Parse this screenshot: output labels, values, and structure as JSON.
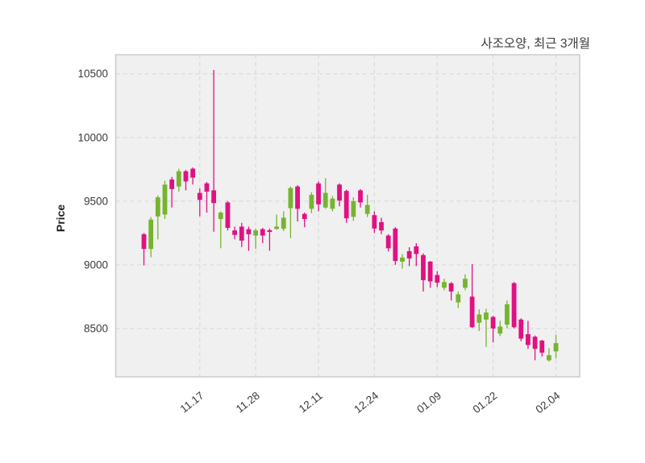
{
  "colors": {
    "up": "#76B42F",
    "down": "#E01182",
    "plot_bg": "#f0f0f0",
    "grid": "#d8d8d8",
    "border": "#cccccc",
    "text": "#3a3a3a"
  },
  "chart_data": {
    "type": "candlestick",
    "title": "사조오양, 최근 3개월",
    "ylabel": "Price",
    "xlabel": "",
    "grid": "dashed",
    "legend": "none",
    "ylim": [
      8120,
      10650
    ],
    "y_ticks": [
      8500,
      9000,
      9500,
      10000,
      10500
    ],
    "x_tick_labels": [
      "11.17",
      "11.28",
      "12.11",
      "12.24",
      "01.09",
      "01.22",
      "02.04"
    ],
    "x_tick_indices": [
      8,
      16,
      25,
      33,
      42,
      50,
      59
    ],
    "candle_format": [
      "open",
      "high",
      "low",
      "close"
    ],
    "candles": [
      [
        9240,
        9250,
        8995,
        9125
      ],
      [
        9125,
        9375,
        9060,
        9355
      ],
      [
        9380,
        9545,
        9200,
        9530
      ],
      [
        9395,
        9660,
        9360,
        9630
      ],
      [
        9670,
        9690,
        9450,
        9595
      ],
      [
        9615,
        9755,
        9575,
        9735
      ],
      [
        9735,
        9745,
        9585,
        9655
      ],
      [
        9755,
        9765,
        9630,
        9685
      ],
      [
        9565,
        9600,
        9380,
        9510
      ],
      [
        9640,
        9650,
        9410,
        9575
      ],
      [
        9585,
        10530,
        9260,
        9485
      ],
      [
        9360,
        9420,
        9130,
        9410
      ],
      [
        9490,
        9500,
        9270,
        9290
      ],
      [
        9270,
        9300,
        9200,
        9235
      ],
      [
        9300,
        9330,
        9140,
        9190
      ],
      [
        9280,
        9300,
        9110,
        9240
      ],
      [
        9230,
        9285,
        9125,
        9270
      ],
      [
        9280,
        9290,
        9170,
        9230
      ],
      [
        9272,
        9285,
        9110,
        9258
      ],
      [
        9282,
        9395,
        9275,
        9300
      ],
      [
        9283,
        9420,
        9265,
        9370
      ],
      [
        9445,
        9615,
        9210,
        9603
      ],
      [
        9615,
        9625,
        9340,
        9440
      ],
      [
        9400,
        9410,
        9295,
        9360
      ],
      [
        9440,
        9570,
        9405,
        9550
      ],
      [
        9640,
        9655,
        9420,
        9475
      ],
      [
        9450,
        9680,
        9440,
        9565
      ],
      [
        9440,
        9540,
        9420,
        9520
      ],
      [
        9630,
        9640,
        9460,
        9505
      ],
      [
        9580,
        9590,
        9330,
        9365
      ],
      [
        9377,
        9530,
        9345,
        9500
      ],
      [
        9585,
        9595,
        9450,
        9490
      ],
      [
        9400,
        9550,
        9375,
        9470
      ],
      [
        9390,
        9420,
        9250,
        9285
      ],
      [
        9335,
        9370,
        9240,
        9270
      ],
      [
        9230,
        9240,
        9105,
        9130
      ],
      [
        9285,
        9295,
        9000,
        9030
      ],
      [
        9025,
        9085,
        8970,
        9057
      ],
      [
        9107,
        9138,
        8990,
        9050
      ],
      [
        9145,
        9170,
        8990,
        9085
      ],
      [
        9076,
        9090,
        8790,
        8880
      ],
      [
        9025,
        9030,
        8820,
        8870
      ],
      [
        8920,
        8950,
        8825,
        8860
      ],
      [
        8820,
        8890,
        8800,
        8865
      ],
      [
        8855,
        8865,
        8720,
        8790
      ],
      [
        8705,
        8790,
        8660,
        8768
      ],
      [
        8820,
        8925,
        8800,
        8890
      ],
      [
        8750,
        9005,
        8505,
        8510
      ],
      [
        8545,
        8650,
        8480,
        8610
      ],
      [
        8570,
        8655,
        8355,
        8625
      ],
      [
        8590,
        8600,
        8390,
        8500
      ],
      [
        8460,
        8560,
        8440,
        8515
      ],
      [
        8530,
        8720,
        8500,
        8690
      ],
      [
        8856,
        8865,
        8500,
        8510
      ],
      [
        8570,
        8580,
        8400,
        8420
      ],
      [
        8455,
        8560,
        8340,
        8370
      ],
      [
        8435,
        8445,
        8250,
        8340
      ],
      [
        8405,
        8410,
        8280,
        8310
      ],
      [
        8250,
        8345,
        8240,
        8290
      ],
      [
        8320,
        8450,
        8265,
        8385
      ]
    ]
  }
}
